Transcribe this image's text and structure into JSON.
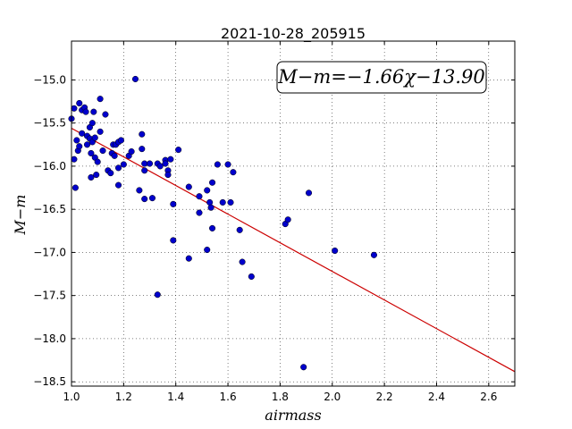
{
  "chart_data": {
    "type": "scatter",
    "title": "2021-10-28_205915",
    "xlabel": "airmass",
    "ylabel": "M−m",
    "xlim": [
      1.0,
      2.7
    ],
    "ylim": [
      -18.55,
      -14.55
    ],
    "x_ticks": [
      1.0,
      1.2,
      1.4,
      1.6,
      1.8,
      2.0,
      2.2,
      2.4,
      2.6
    ],
    "x_tick_labels": [
      "1.0",
      "1.2",
      "1.4",
      "1.6",
      "1.8",
      "2.0",
      "2.2",
      "2.4",
      "2.6"
    ],
    "y_ticks": [
      -15.0,
      -15.5,
      -16.0,
      -16.5,
      -17.0,
      -17.5,
      -18.0,
      -18.5
    ],
    "y_tick_labels": [
      "−15.0",
      "−15.5",
      "−16.0",
      "−16.5",
      "−17.0",
      "−17.5",
      "−18.0",
      "−18.5"
    ],
    "grid": true,
    "annotation": "M−m=−1.66χ−13.90",
    "fit_line": {
      "slope": -1.66,
      "intercept": -13.9,
      "color": "#cc0000"
    },
    "point_color": "#0000cc",
    "points": [
      [
        1.0,
        -15.45
      ],
      [
        1.01,
        -15.33
      ],
      [
        1.01,
        -15.92
      ],
      [
        1.015,
        -16.25
      ],
      [
        1.02,
        -15.7
      ],
      [
        1.025,
        -15.82
      ],
      [
        1.03,
        -15.27
      ],
      [
        1.03,
        -15.77
      ],
      [
        1.04,
        -15.35
      ],
      [
        1.04,
        -15.62
      ],
      [
        1.05,
        -15.32
      ],
      [
        1.055,
        -15.37
      ],
      [
        1.06,
        -15.65
      ],
      [
        1.06,
        -15.75
      ],
      [
        1.07,
        -15.55
      ],
      [
        1.07,
        -15.68
      ],
      [
        1.075,
        -15.85
      ],
      [
        1.075,
        -16.13
      ],
      [
        1.08,
        -15.5
      ],
      [
        1.08,
        -15.72
      ],
      [
        1.085,
        -15.37
      ],
      [
        1.09,
        -15.67
      ],
      [
        1.09,
        -15.9
      ],
      [
        1.095,
        -16.1
      ],
      [
        1.1,
        -15.95
      ],
      [
        1.11,
        -15.22
      ],
      [
        1.11,
        -15.6
      ],
      [
        1.12,
        -15.82
      ],
      [
        1.13,
        -15.4
      ],
      [
        1.14,
        -16.05
      ],
      [
        1.15,
        -16.08
      ],
      [
        1.155,
        -15.85
      ],
      [
        1.16,
        -15.75
      ],
      [
        1.165,
        -15.88
      ],
      [
        1.17,
        -15.75
      ],
      [
        1.18,
        -15.72
      ],
      [
        1.18,
        -16.02
      ],
      [
        1.18,
        -16.22
      ],
      [
        1.19,
        -15.7
      ],
      [
        1.2,
        -15.98
      ],
      [
        1.22,
        -15.88
      ],
      [
        1.23,
        -15.83
      ],
      [
        1.245,
        -14.99
      ],
      [
        1.26,
        -16.28
      ],
      [
        1.27,
        -15.63
      ],
      [
        1.27,
        -15.8
      ],
      [
        1.28,
        -15.97
      ],
      [
        1.28,
        -16.05
      ],
      [
        1.28,
        -16.38
      ],
      [
        1.3,
        -15.97
      ],
      [
        1.31,
        -16.37
      ],
      [
        1.33,
        -15.97
      ],
      [
        1.33,
        -17.49
      ],
      [
        1.34,
        -16.0
      ],
      [
        1.36,
        -15.93
      ],
      [
        1.36,
        -15.97
      ],
      [
        1.37,
        -16.05
      ],
      [
        1.37,
        -16.1
      ],
      [
        1.38,
        -15.92
      ],
      [
        1.39,
        -16.44
      ],
      [
        1.39,
        -16.86
      ],
      [
        1.41,
        -15.81
      ],
      [
        1.45,
        -16.24
      ],
      [
        1.45,
        -17.07
      ],
      [
        1.49,
        -16.35
      ],
      [
        1.49,
        -16.54
      ],
      [
        1.52,
        -16.97
      ],
      [
        1.52,
        -16.28
      ],
      [
        1.53,
        -16.42
      ],
      [
        1.535,
        -16.48
      ],
      [
        1.54,
        -16.19
      ],
      [
        1.54,
        -16.72
      ],
      [
        1.56,
        -15.98
      ],
      [
        1.58,
        -16.42
      ],
      [
        1.6,
        -15.98
      ],
      [
        1.61,
        -16.42
      ],
      [
        1.62,
        -16.07
      ],
      [
        1.645,
        -16.74
      ],
      [
        1.655,
        -17.11
      ],
      [
        1.69,
        -17.28
      ],
      [
        1.82,
        -16.67
      ],
      [
        1.83,
        -16.62
      ],
      [
        1.89,
        -18.33
      ],
      [
        1.91,
        -16.31
      ],
      [
        2.01,
        -16.98
      ],
      [
        2.16,
        -17.03
      ]
    ]
  }
}
